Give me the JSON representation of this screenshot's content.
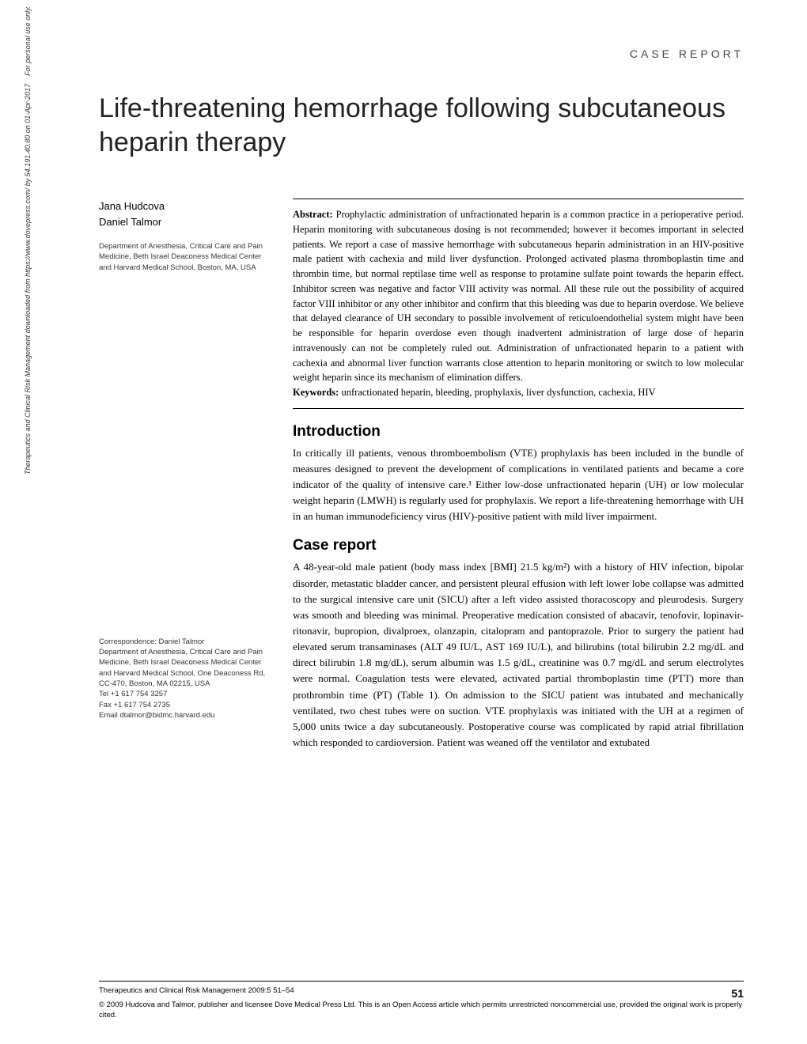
{
  "sidebar_note": "Therapeutics and Clinical Risk Management downloaded from https://www.dovepress.com/ by 54.191.40.80 on 01-Apr-2017    For personal use only.",
  "header_label": "CASE REPORT",
  "title": "Life-threatening hemorrhage following subcutaneous heparin therapy",
  "authors": {
    "a1": "Jana Hudcova",
    "a2": "Daniel Talmor"
  },
  "affiliation": "Department of Anesthesia, Critical Care and Pain Medicine, Beth Israel Deaconess Medical Center and Harvard Medical School, Boston, MA, USA",
  "correspondence": {
    "label": "Correspondence: Daniel Talmor",
    "l1": "Department of Anesthesia, Critical Care and Pain Medicine, Beth Israel Deaconess Medical Center and Harvard Medical School, One Deaconess Rd, CC-470, Boston, MA 02215, USA",
    "l2": "Tel +1 617 754 3257",
    "l3": "Fax +1 617 754 2735",
    "l4": "Email dtalmor@bidmc.harvard.edu"
  },
  "abstract_label": "Abstract:",
  "abstract_text": " Prophylactic administration of unfractionated heparin is a common practice in a perioperative period. Heparin monitoring with subcutaneous dosing is not recommended; however it becomes important in selected patients. We report a case of massive hemorrhage with subcutaneous heparin administration in an HIV-positive male patient with cachexia and mild liver dysfunction. Prolonged activated plasma thromboplastin time and thrombin time, but normal reptilase time well as response to protamine sulfate point towards the heparin effect. Inhibitor screen was negative and factor VIII activity was normal. All these rule out the possibility of acquired factor VIII inhibitor or any other inhibitor and confirm that this bleeding was due to heparin overdose. We believe that delayed clearance of UH secondary to possible involvement of reticuloendothelial system might have been be responsible for heparin overdose even though inadvertent administration of large dose of heparin intravenously can not be completely ruled out. Administration of unfractionated heparin to a patient with cachexia and abnormal liver function warrants close attention to heparin monitoring or switch to low molecular weight heparin since its mechanism of elimination differs.",
  "keywords_label": "Keywords:",
  "keywords_text": " unfractionated heparin, bleeding, prophylaxis, liver dysfunction, cachexia, HIV",
  "sections": {
    "intro_heading": "Introduction",
    "intro_text": "In critically ill patients, venous thromboembolism (VTE) prophylaxis has been included in the bundle of measures designed to prevent the development of complications in ventilated patients and became a core indicator of the quality of intensive care.¹ Either low-dose unfractionated heparin (UH) or low molecular weight heparin (LMWH) is regularly used for prophylaxis. We report a life-threatening hemorrhage with UH in an human immunodeficiency virus (HIV)-positive patient with mild liver impairment.",
    "case_heading": "Case report",
    "case_text": "A 48-year-old male patient (body mass index [BMI] 21.5 kg/m²) with a history of HIV infection, bipolar disorder, metastatic bladder cancer, and persistent pleural effusion with left lower lobe collapse was admitted to the surgical intensive care unit (SICU) after a left video assisted thoracoscopy and pleurodesis. Surgery was smooth and bleeding was minimal. Preoperative medication consisted of abacavir, tenofovir, lopinavir-ritonavir, bupropion, divalproex, olanzapin, citalopram and pantoprazole. Prior to surgery the patient had elevated serum transaminases (ALT 49 IU/L, AST 169 IU/L), and bilirubins (total bilirubin 2.2 mg/dL and direct bilirubin 1.8 mg/dL), serum albumin was 1.5 g/dL, creatinine was 0.7 mg/dL and serum electrolytes were normal. Coagulation tests were elevated, activated partial thromboplastin time (PTT) more than prothrombin time (PT) (Table 1). On admission to the SICU patient was intubated and mechanically ventilated, two chest tubes were on suction. VTE prophylaxis was initiated with the UH at a regimen of 5,000 units twice a day subcutaneously. Postoperative course was complicated by rapid atrial fibrillation which responded to cardioversion. Patient was weaned off the ventilator and extubated"
  },
  "footer": {
    "journal_ref": "Therapeutics and Clinical Risk Management 2009:5 51–54",
    "page_number": "51",
    "copyright": "© 2009 Hudcova and Talmor, publisher and licensee Dove Medical Press Ltd. This is an Open Access article which permits unrestricted noncommercial use, provided the original work is properly cited."
  }
}
